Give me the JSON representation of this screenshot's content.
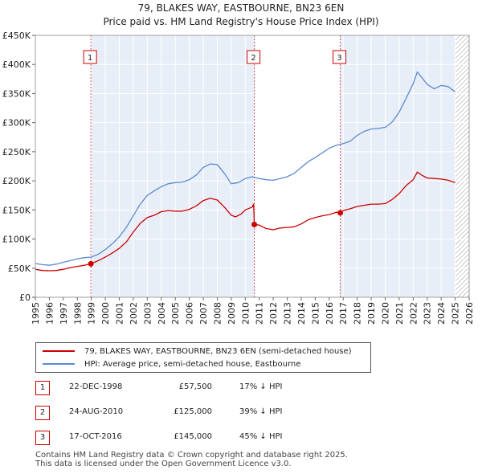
{
  "title": "79, BLAKES WAY, EASTBOURNE, BN23 6EN",
  "subtitle": "Price paid vs. HM Land Registry's House Price Index (HPI)",
  "colors": {
    "property": "#cc0000",
    "hpi": "#5b8bd0",
    "shade": "#e8eef8",
    "future_hatch": "#999999"
  },
  "legend": {
    "property": "79, BLAKES WAY, EASTBOURNE, BN23 6EN (semi-detached house)",
    "hpi": "HPI: Average price, semi-detached house, Eastbourne"
  },
  "transactions": [
    {
      "num": "1",
      "date": "22-DEC-1998",
      "price": "£57,500",
      "hpi": "17% ↓ HPI"
    },
    {
      "num": "2",
      "date": "24-AUG-2010",
      "price": "£125,000",
      "hpi": "39% ↓ HPI"
    },
    {
      "num": "3",
      "date": "17-OCT-2016",
      "price": "£145,000",
      "hpi": "45% ↓ HPI"
    }
  ],
  "footer": {
    "line1": "Contains HM Land Registry data © Crown copyright and database right 2025.",
    "line2": "This data is licensed under the Open Government Licence v3.0."
  },
  "chart_data": {
    "type": "line",
    "xlim": [
      1995,
      2026
    ],
    "ylim": [
      0,
      450000
    ],
    "xticks": [
      "1995",
      "1996",
      "1997",
      "1998",
      "1999",
      "2000",
      "2001",
      "2002",
      "2003",
      "2004",
      "2005",
      "2006",
      "2007",
      "2008",
      "2009",
      "2010",
      "2011",
      "2012",
      "2013",
      "2014",
      "2015",
      "2016",
      "2017",
      "2018",
      "2019",
      "2020",
      "2021",
      "2022",
      "2023",
      "2024",
      "2025",
      "2026"
    ],
    "yticks": [
      {
        "value": 0,
        "label": "£0"
      },
      {
        "value": 50000,
        "label": "£50K"
      },
      {
        "value": 100000,
        "label": "£100K"
      },
      {
        "value": 150000,
        "label": "£150K"
      },
      {
        "value": 200000,
        "label": "£200K"
      },
      {
        "value": 250000,
        "label": "£250K"
      },
      {
        "value": 300000,
        "label": "£300K"
      },
      {
        "value": 350000,
        "label": "£350K"
      },
      {
        "value": 400000,
        "label": "£400K"
      },
      {
        "value": 450000,
        "label": "£450K"
      }
    ],
    "shaded_ranges": [
      [
        1998.97,
        2010.65
      ],
      [
        2016.79,
        2025.0
      ]
    ],
    "future_start": 2025.0,
    "sale_markers": [
      {
        "label": "1",
        "x": 1998.97,
        "y": 57500
      },
      {
        "label": "2",
        "x": 2010.65,
        "y": 125000
      },
      {
        "label": "3",
        "x": 2016.79,
        "y": 145000
      }
    ],
    "series": [
      {
        "name": "79, BLAKES WAY, EASTBOURNE, BN23 6EN (semi-detached house)",
        "x": [
          1995.0,
          1995.5,
          1996.0,
          1996.5,
          1997.0,
          1997.5,
          1998.0,
          1998.5,
          1998.97,
          1999.5,
          2000.0,
          2000.5,
          2001.0,
          2001.5,
          2002.0,
          2002.5,
          2003.0,
          2003.5,
          2004.0,
          2004.5,
          2005.0,
          2005.5,
          2006.0,
          2006.5,
          2007.0,
          2007.5,
          2008.0,
          2008.5,
          2009.0,
          2009.3,
          2009.7,
          2010.0,
          2010.5,
          2010.6,
          2010.65,
          2011.0,
          2011.5,
          2012.0,
          2012.5,
          2013.0,
          2013.5,
          2014.0,
          2014.5,
          2015.0,
          2015.5,
          2016.0,
          2016.5,
          2016.79,
          2017.0,
          2017.5,
          2018.0,
          2018.5,
          2019.0,
          2019.5,
          2020.0,
          2020.5,
          2021.0,
          2021.5,
          2022.0,
          2022.3,
          2022.6,
          2023.0,
          2023.5,
          2024.0,
          2024.5,
          2025.0
        ],
        "values": [
          48000,
          46000,
          45500,
          46000,
          48000,
          51000,
          53000,
          55000,
          57500,
          63000,
          69000,
          76000,
          84000,
          95000,
          112000,
          127000,
          137000,
          141000,
          147000,
          149000,
          148000,
          148000,
          151000,
          157000,
          166000,
          170000,
          167000,
          155000,
          141000,
          138000,
          143000,
          150000,
          155000,
          160000,
          125000,
          124000,
          118000,
          116000,
          119000,
          120000,
          121000,
          126000,
          133000,
          137000,
          140000,
          142000,
          146000,
          145000,
          149000,
          152000,
          156000,
          158000,
          160000,
          160000,
          161000,
          168000,
          178000,
          192000,
          202000,
          215000,
          210000,
          205000,
          204000,
          203000,
          201000,
          197000
        ]
      },
      {
        "name": "HPI: Average price, semi-detached house, Eastbourne",
        "x": [
          1995.0,
          1995.5,
          1996.0,
          1996.5,
          1997.0,
          1997.5,
          1998.0,
          1998.5,
          1999.0,
          1999.5,
          2000.0,
          2000.5,
          2001.0,
          2001.5,
          2002.0,
          2002.5,
          2003.0,
          2003.5,
          2004.0,
          2004.5,
          2005.0,
          2005.5,
          2006.0,
          2006.5,
          2007.0,
          2007.5,
          2008.0,
          2008.5,
          2009.0,
          2009.5,
          2010.0,
          2010.5,
          2011.0,
          2011.5,
          2012.0,
          2012.5,
          2013.0,
          2013.5,
          2014.0,
          2014.5,
          2015.0,
          2015.5,
          2016.0,
          2016.5,
          2017.0,
          2017.5,
          2018.0,
          2018.5,
          2019.0,
          2019.5,
          2020.0,
          2020.5,
          2021.0,
          2021.5,
          2022.0,
          2022.3,
          2022.6,
          2023.0,
          2023.5,
          2024.0,
          2024.5,
          2025.0
        ],
        "values": [
          58000,
          56000,
          55000,
          57000,
          60000,
          63000,
          66000,
          68000,
          69000,
          74000,
          82000,
          92000,
          104000,
          120000,
          140000,
          160000,
          175000,
          183000,
          190000,
          195000,
          197000,
          198000,
          202000,
          210000,
          223000,
          229000,
          228000,
          213000,
          195000,
          197000,
          204000,
          207000,
          204000,
          202000,
          201000,
          204000,
          207000,
          213000,
          223000,
          233000,
          240000,
          248000,
          256000,
          261000,
          264000,
          268000,
          278000,
          285000,
          289000,
          290000,
          292000,
          301000,
          318000,
          342000,
          367000,
          387000,
          378000,
          366000,
          358000,
          364000,
          362000,
          353000
        ]
      }
    ]
  }
}
